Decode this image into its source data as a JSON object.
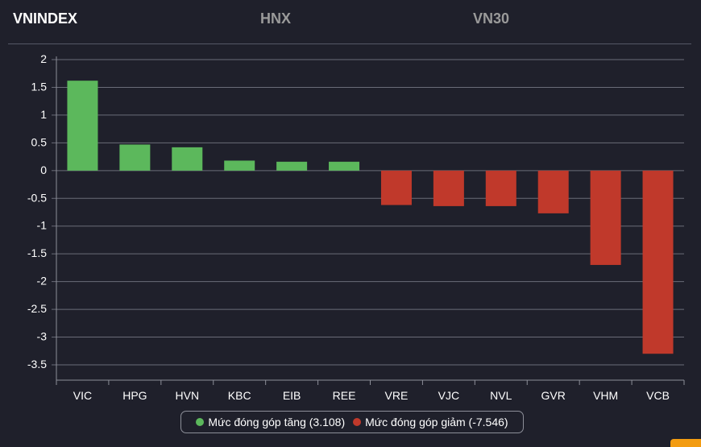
{
  "tabs": [
    {
      "label": "VNINDEX",
      "active": true
    },
    {
      "label": "HNX",
      "active": false
    },
    {
      "label": "VN30",
      "active": false
    }
  ],
  "colors": {
    "positive": "#5cb85c",
    "negative": "#c0392b",
    "grid": "#6a6c78",
    "accent": "#f39c12"
  },
  "chart_data": {
    "type": "bar",
    "categories": [
      "VIC",
      "HPG",
      "HVN",
      "KBC",
      "EIB",
      "REE",
      "VRE",
      "VJC",
      "NVL",
      "GVR",
      "VHM",
      "VCB"
    ],
    "values": [
      1.62,
      0.47,
      0.42,
      0.18,
      0.16,
      0.16,
      -0.62,
      -0.64,
      -0.64,
      -0.77,
      -1.7,
      -3.3
    ],
    "ylim": [
      -3.5,
      2
    ],
    "yticks": [
      "2",
      "1.5",
      "1",
      "0.5",
      "0",
      "-0.5",
      "-1",
      "-1.5",
      "-2",
      "-2.5",
      "-3",
      "-3.5"
    ],
    "grid": true,
    "legend_position": "bottom-center",
    "legend": [
      {
        "label": "Mức đóng góp tăng (3.108)",
        "color": "#5cb85c"
      },
      {
        "label": "Mức đóng góp giảm (-7.546)",
        "color": "#c0392b"
      }
    ]
  }
}
